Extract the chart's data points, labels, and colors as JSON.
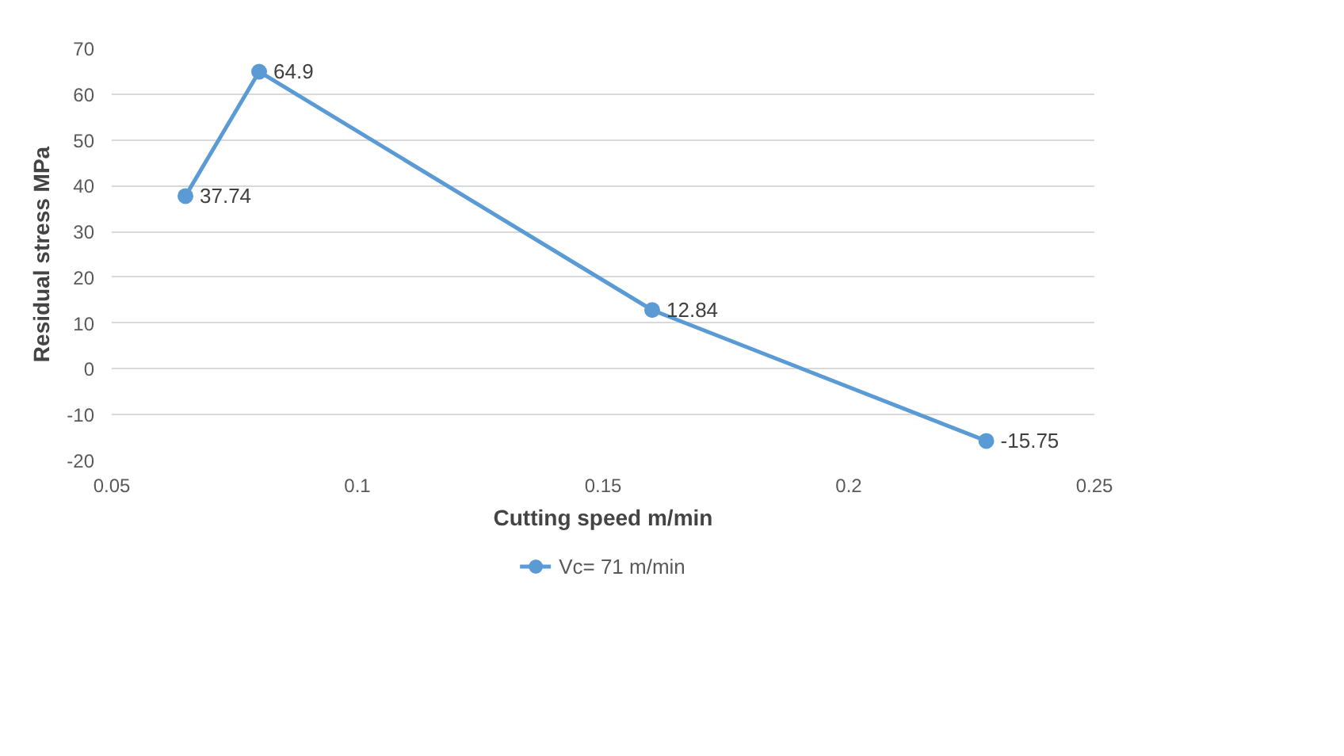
{
  "chart_data": {
    "type": "line",
    "xlabel": "Cutting speed m/min",
    "ylabel": "Residual stress MPa",
    "x": [
      0.065,
      0.08,
      0.16,
      0.228
    ],
    "series": [
      {
        "name": "Vc= 71 m/min",
        "color": "#5b9bd5",
        "values": [
          37.74,
          64.9,
          12.84,
          -15.75
        ]
      }
    ],
    "xlim": [
      0.05,
      0.25
    ],
    "xticks": [
      0.05,
      0.1,
      0.15,
      0.2,
      0.25
    ],
    "ylim": [
      -20,
      70
    ],
    "yticks": [
      -20,
      -10,
      0,
      10,
      20,
      30,
      40,
      50,
      60,
      70
    ],
    "grid": "y",
    "legend": "bottom",
    "marker": "circle",
    "line_style": "solid",
    "data_labels": true
  }
}
